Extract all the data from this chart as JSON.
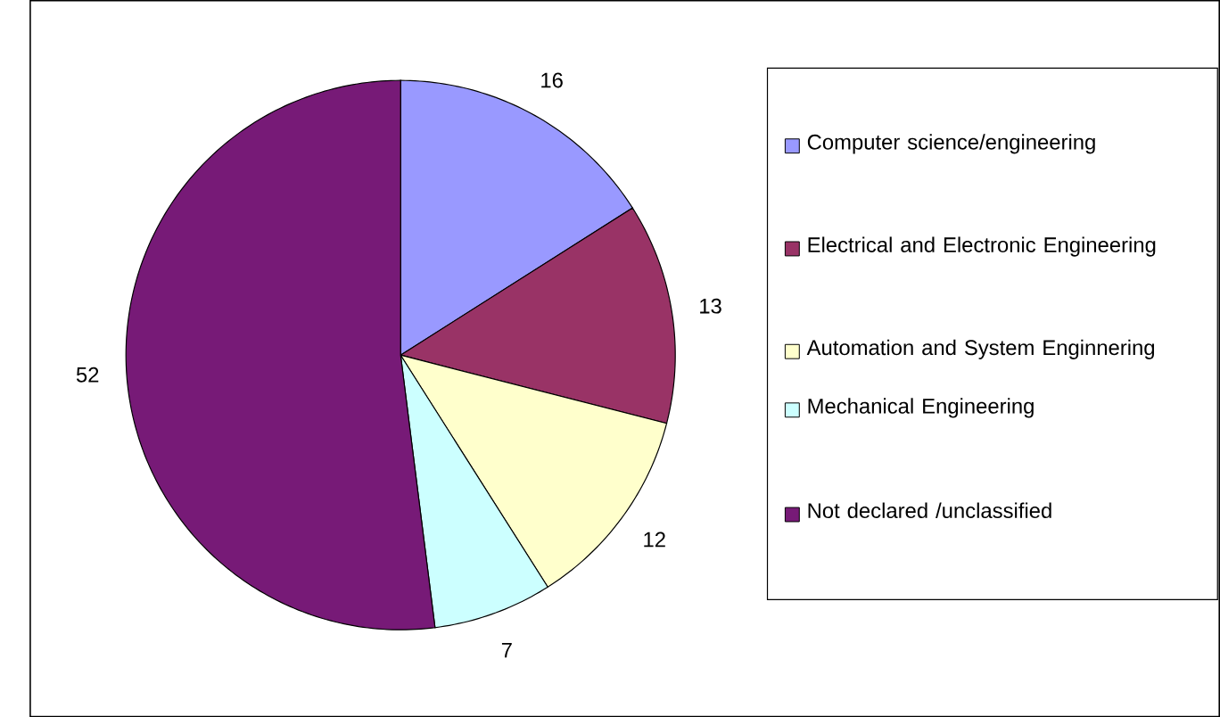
{
  "chart_data": {
    "type": "pie",
    "categories": [
      "Computer science/engineering",
      "Electrical and Electronic Engineering",
      "Automation and System Enginnering",
      "Mechanical Engineering",
      "Not declared /unclassified"
    ],
    "values": [
      16,
      13,
      12,
      7,
      52
    ],
    "colors": [
      "#9999ff",
      "#993366",
      "#ffffcc",
      "#ccffff",
      "#771a77"
    ],
    "data_labels": true,
    "legend": "right"
  }
}
